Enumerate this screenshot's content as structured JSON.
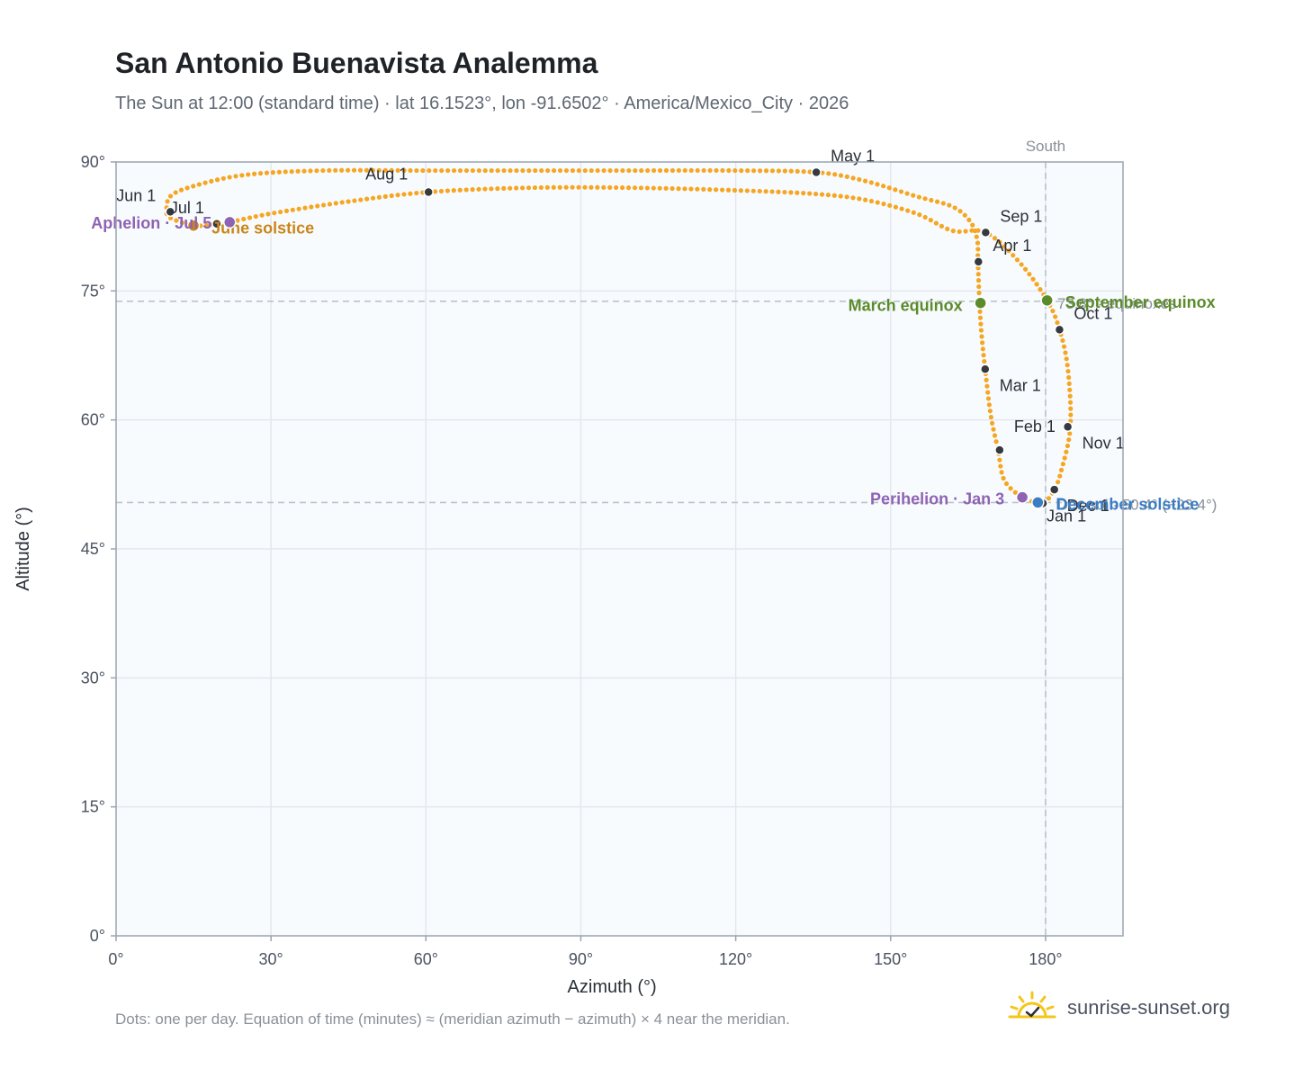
{
  "title": "San Antonio Buenavista Analemma",
  "subtitle": "The Sun at 12:00 (standard time) · lat 16.1523°, lon -91.6502° · America/Mexico_City · 2026",
  "footnote": "Dots: one per day. Equation of time (minutes) ≈ (meridian azimuth − azimuth) × 4 near the meridian.",
  "brand": "sunrise-sunset.org",
  "colors": {
    "curve": "#f5a623",
    "month_marker": "#343a40",
    "equinox": "#5b8c2a",
    "solstice_june": "#c9871a",
    "solstice_december": "#3b7dc4",
    "apsis": "#8e63b3",
    "reference": "#b9c3cc",
    "plot_bg": "#f8fbfe",
    "grid": "#e3e8ee",
    "frame": "#9aa4ae"
  },
  "chart_data": {
    "type": "scatter",
    "xlabel": "Azimuth (°)",
    "ylabel": "Altitude (°)",
    "xlim": [
      0,
      195
    ],
    "ylim": [
      0,
      90
    ],
    "xticks": [
      0,
      30,
      60,
      90,
      120,
      150,
      180
    ],
    "yticks": [
      0,
      15,
      30,
      45,
      60,
      75,
      90
    ],
    "xtick_labels": [
      "0°",
      "30°",
      "60°",
      "90°",
      "120°",
      "150°",
      "180°"
    ],
    "ytick_labels": [
      "0°",
      "15°",
      "30°",
      "45°",
      "60°",
      "75°",
      "90°"
    ],
    "grid": true,
    "south_line": {
      "x": 180,
      "label": "South"
    },
    "reference_lines": [
      {
        "y": 73.8,
        "label": "73.8° · equinoxes"
      },
      {
        "y": 50.4,
        "label": "Dec sol · 50.4° (−23.4°)"
      }
    ],
    "analemma_path": [
      [
        178.5,
        50.4
      ],
      [
        175.5,
        51.0
      ],
      [
        172.0,
        53.0
      ],
      [
        170.8,
        56.5
      ],
      [
        169.4,
        60.5
      ],
      [
        168.3,
        65.9
      ],
      [
        167.6,
        70.0
      ],
      [
        167.2,
        73.8
      ],
      [
        166.9,
        78.5
      ],
      [
        166.8,
        80.8
      ],
      [
        165.5,
        83.0
      ],
      [
        162.0,
        84.8
      ],
      [
        155.0,
        86.0
      ],
      [
        145.0,
        87.8
      ],
      [
        135.6,
        88.8
      ],
      [
        120.0,
        89.0
      ],
      [
        100.0,
        89.0
      ],
      [
        80.0,
        89.0
      ],
      [
        60.0,
        89.0
      ],
      [
        40.0,
        89.0
      ],
      [
        25.0,
        88.5
      ],
      [
        15.0,
        87.2
      ],
      [
        10.5,
        86.0
      ],
      [
        9.8,
        84.2
      ],
      [
        10.5,
        83.5
      ],
      [
        15.0,
        82.6
      ],
      [
        19.5,
        82.8
      ],
      [
        22.0,
        83.0
      ],
      [
        30.0,
        84.0
      ],
      [
        45.0,
        85.4
      ],
      [
        60.5,
        86.5
      ],
      [
        80.0,
        87.0
      ],
      [
        100.0,
        87.0
      ],
      [
        120.0,
        86.7
      ],
      [
        135.0,
        86.3
      ],
      [
        145.0,
        85.6
      ],
      [
        155.0,
        84.0
      ],
      [
        162.0,
        82.0
      ],
      [
        168.4,
        81.8
      ],
      [
        175.0,
        78.3
      ],
      [
        180.3,
        73.9
      ],
      [
        182.7,
        70.5
      ],
      [
        184.3,
        66.0
      ],
      [
        184.8,
        59.2
      ],
      [
        183.0,
        54.0
      ],
      [
        181.7,
        51.9
      ],
      [
        180.0,
        50.5
      ],
      [
        178.5,
        50.4
      ]
    ],
    "month_markers": [
      {
        "label": "Jan 1",
        "x": 179.5,
        "y": 50.3
      },
      {
        "label": "Feb 1",
        "x": 171.1,
        "y": 56.5
      },
      {
        "label": "Mar 1",
        "x": 168.3,
        "y": 65.9
      },
      {
        "label": "Apr 1",
        "x": 167.0,
        "y": 78.4
      },
      {
        "label": "May 1",
        "x": 135.6,
        "y": 88.8
      },
      {
        "label": "Jun 1",
        "x": 10.5,
        "y": 84.2
      },
      {
        "label": "Jul 1",
        "x": 19.5,
        "y": 82.8
      },
      {
        "label": "Aug 1",
        "x": 60.5,
        "y": 86.5
      },
      {
        "label": "Sep 1",
        "x": 168.4,
        "y": 81.8
      },
      {
        "label": "Oct 1",
        "x": 182.7,
        "y": 70.5
      },
      {
        "label": "Nov 1",
        "x": 184.3,
        "y": 59.2
      },
      {
        "label": "Dec 1",
        "x": 181.7,
        "y": 51.9
      }
    ],
    "events": [
      {
        "label": "March equinox",
        "x": 167.4,
        "y": 73.6,
        "kind": "equinox"
      },
      {
        "label": "September equinox",
        "x": 180.3,
        "y": 73.9,
        "kind": "equinox"
      },
      {
        "label": "June solstice",
        "x": 15.0,
        "y": 82.6,
        "kind": "solstice_june"
      },
      {
        "label": "December solstice",
        "x": 178.5,
        "y": 50.4,
        "kind": "solstice_december"
      },
      {
        "label": "Perihelion · Jan 3",
        "x": 175.5,
        "y": 51.0,
        "kind": "apsis"
      },
      {
        "label": "Aphelion · Jul 5",
        "x": 22.0,
        "y": 83.0,
        "kind": "apsis"
      }
    ]
  }
}
